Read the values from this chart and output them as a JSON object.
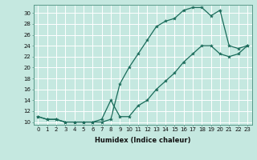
{
  "title": "",
  "xlabel": "Humidex (Indice chaleur)",
  "ylabel": "",
  "bg_color": "#c5e8e0",
  "grid_color": "#ffffff",
  "line_color": "#1a6b5a",
  "xlim": [
    -0.5,
    23.5
  ],
  "ylim": [
    9.5,
    31.5
  ],
  "yticks": [
    10,
    12,
    14,
    16,
    18,
    20,
    22,
    24,
    26,
    28,
    30
  ],
  "xticks": [
    0,
    1,
    2,
    3,
    4,
    5,
    6,
    7,
    8,
    9,
    10,
    11,
    12,
    13,
    14,
    15,
    16,
    17,
    18,
    19,
    20,
    21,
    22,
    23
  ],
  "xtick_labels": [
    "0",
    "1",
    "2",
    "3",
    "4",
    "5",
    "6",
    "7",
    "8",
    "9",
    "10",
    "11",
    "12",
    "13",
    "14",
    "15",
    "16",
    "17",
    "18",
    "19",
    "20",
    "21",
    "22",
    "23"
  ],
  "line1_x": [
    0,
    1,
    2,
    3,
    4,
    5,
    6,
    7,
    8,
    9,
    10,
    11,
    12,
    13,
    14,
    15,
    16,
    17,
    18,
    19,
    20,
    21,
    22,
    23
  ],
  "line1_y": [
    11,
    10.5,
    10.5,
    10,
    10,
    10,
    10,
    10,
    10.5,
    17,
    20,
    22.5,
    25,
    27.5,
    28.5,
    29,
    30.5,
    31,
    31,
    29.5,
    30.5,
    24,
    23.5,
    24
  ],
  "line2_x": [
    0,
    1,
    2,
    3,
    4,
    5,
    6,
    7,
    8,
    9,
    10,
    11,
    12,
    13,
    14,
    15,
    16,
    17,
    18,
    19,
    20,
    21,
    22,
    23
  ],
  "line2_y": [
    11,
    10.5,
    10.5,
    10,
    10,
    10,
    10,
    10.5,
    14,
    11,
    11,
    13,
    14,
    16,
    17.5,
    19,
    21,
    22.5,
    24,
    24,
    22.5,
    22,
    22.5,
    24
  ],
  "marker_size": 3,
  "line_width": 0.9,
  "tick_fontsize": 5.0,
  "xlabel_fontsize": 6.0
}
